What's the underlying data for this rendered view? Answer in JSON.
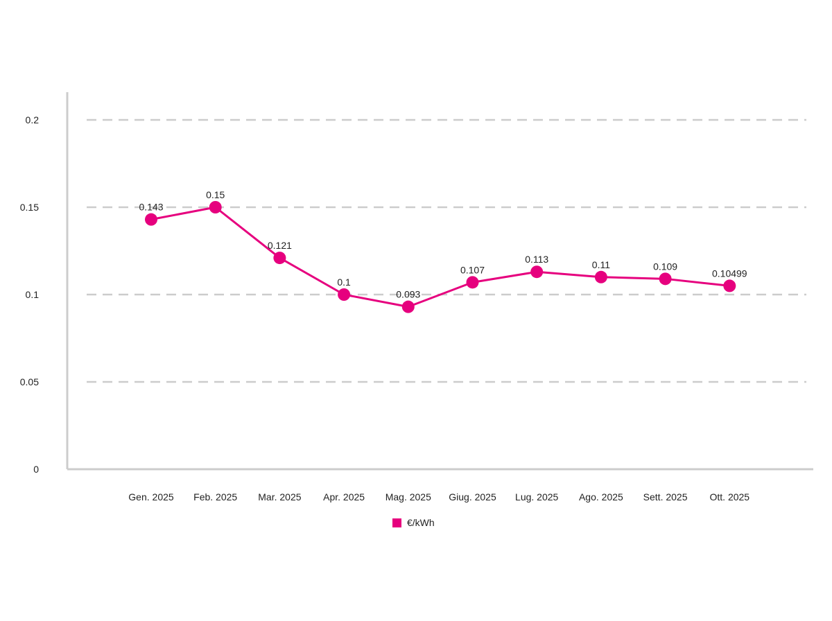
{
  "chart_data": {
    "type": "line",
    "categories": [
      "Gen. 2025",
      "Feb. 2025",
      "Mar. 2025",
      "Apr. 2025",
      "Mag. 2025",
      "Giug. 2025",
      "Lug. 2025",
      "Ago. 2025",
      "Sett. 2025",
      "Ott. 2025"
    ],
    "series": [
      {
        "name": "€/kWh",
        "values": [
          0.143,
          0.15,
          0.121,
          0.1,
          0.093,
          0.107,
          0.113,
          0.11,
          0.109,
          0.10499
        ],
        "labels": [
          "0.143",
          "0.15",
          "0.121",
          "0.1",
          "0.093",
          "0.107",
          "0.113",
          "0.11",
          "0.109",
          "0.10499"
        ],
        "color": "#e6007e"
      }
    ],
    "yticks": [
      0,
      0.05,
      0.1,
      0.15,
      0.2
    ],
    "ytick_labels": [
      "0",
      "0.05",
      "0.1",
      "0.15",
      "0.2"
    ],
    "ylim": [
      0,
      0.2
    ],
    "grid": "horizontal-dashed",
    "legend_position": "bottom-center",
    "title": "",
    "xlabel": "",
    "ylabel": ""
  },
  "legend": {
    "label": "€/kWh",
    "color": "#e6007e"
  }
}
